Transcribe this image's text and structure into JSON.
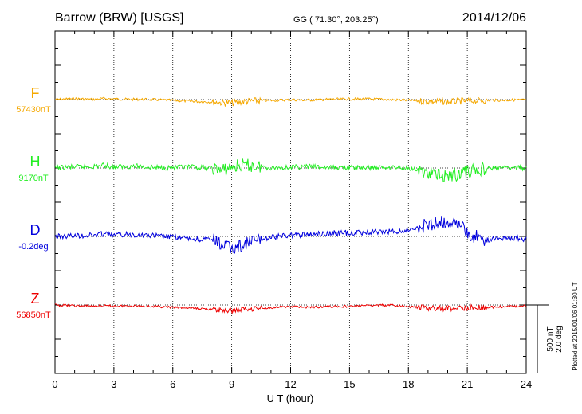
{
  "header": {
    "station": "Barrow (BRW)  [USGS]",
    "coords": "GG ( 71.30°, 203.25°)",
    "date": "2014/12/06"
  },
  "footer": {
    "plotted_at": "Plotted at 2015/01/06 01:30 UT"
  },
  "scale_bar": {
    "line1": "500 nT",
    "line2": "2.0 deg"
  },
  "colors": {
    "F": "#f5a800",
    "H": "#22ee22",
    "D": "#0000dd",
    "Z": "#ee0000",
    "axis": "#000000"
  },
  "chart_data": {
    "type": "line",
    "title": "Barrow (BRW)  [USGS]",
    "xlabel": "U T (hour)",
    "ylabel": "",
    "xlim": [
      0,
      24
    ],
    "x_ticks": [
      "0",
      "3",
      "6",
      "9",
      "12",
      "15",
      "18",
      "21",
      "24"
    ],
    "grid": true,
    "y_scale_nT_per_bar": 500,
    "y_scale_deg_per_bar": 2.0,
    "x": [
      0,
      1,
      2,
      2.5,
      3,
      4,
      5,
      6,
      7,
      8,
      8.5,
      9,
      9.5,
      10,
      11,
      12,
      13,
      14,
      15,
      16,
      17,
      18,
      19,
      20,
      20.5,
      21,
      22,
      23,
      24
    ],
    "series": [
      {
        "name": "F",
        "baseline_label": "57430nT",
        "baseline_value": 57430,
        "units": "nT",
        "values": [
          57430,
          57436,
          57432,
          57438,
          57434,
          57432,
          57430,
          57424,
          57418,
          57412,
          57408,
          57404,
          57414,
          57420,
          57424,
          57428,
          57426,
          57432,
          57434,
          57434,
          57430,
          57424,
          57416,
          57414,
          57418,
          57420,
          57424,
          57426,
          57428
        ]
      },
      {
        "name": "H",
        "baseline_label": "9170nT",
        "baseline_value": 9170,
        "units": "nT",
        "values": [
          9170,
          9178,
          9182,
          9190,
          9178,
          9184,
          9174,
          9172,
          9176,
          9170,
          9150,
          9176,
          9190,
          9186,
          9172,
          9176,
          9180,
          9172,
          9174,
          9172,
          9176,
          9172,
          9130,
          9110,
          9124,
          9148,
          9166,
          9172,
          9170
        ]
      },
      {
        "name": "D",
        "baseline_label": "-0.2deg",
        "baseline_value": -0.2,
        "units": "deg",
        "values": [
          -0.2,
          -0.18,
          -0.16,
          -0.12,
          -0.16,
          -0.14,
          -0.18,
          -0.22,
          -0.28,
          -0.3,
          -0.44,
          -0.56,
          -0.46,
          -0.36,
          -0.22,
          -0.16,
          -0.14,
          -0.1,
          -0.1,
          -0.08,
          -0.06,
          -0.04,
          0.16,
          0.26,
          0.2,
          -0.14,
          -0.3,
          -0.22,
          -0.28
        ]
      },
      {
        "name": "Z",
        "baseline_label": "56850nT",
        "baseline_value": 56850,
        "units": "nT",
        "values": [
          56850,
          56844,
          56842,
          56844,
          56842,
          56844,
          56840,
          56832,
          56826,
          56818,
          56810,
          56806,
          56818,
          56824,
          56830,
          56838,
          56834,
          56838,
          56840,
          56846,
          56848,
          56838,
          56826,
          56824,
          56828,
          56830,
          56832,
          56838,
          56844
        ]
      }
    ]
  }
}
